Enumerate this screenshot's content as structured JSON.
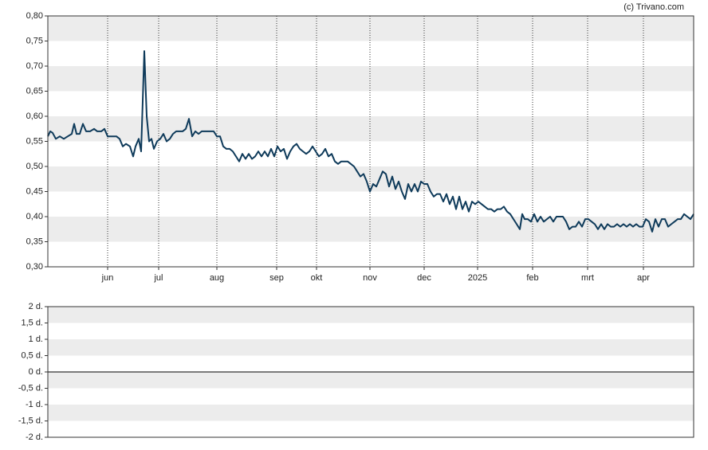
{
  "source": "(c) Trivano.com",
  "chart_data": [
    {
      "type": "line",
      "color": "#0e3a5a",
      "x": [
        0,
        3,
        6,
        10,
        15,
        20,
        25,
        30,
        33,
        36,
        40,
        44,
        48,
        53,
        58,
        62,
        67,
        71,
        75,
        80,
        86,
        90,
        94,
        98,
        103,
        107,
        110,
        114,
        117,
        121,
        124,
        127,
        130,
        133,
        137,
        141,
        145,
        149,
        153,
        157,
        161,
        165,
        169,
        173,
        177,
        181,
        185,
        189,
        193,
        197,
        202,
        208,
        212,
        216,
        220,
        224,
        228,
        232,
        236,
        240,
        244,
        248,
        252,
        256,
        260,
        264,
        268,
        272,
        276,
        280,
        284,
        288,
        292,
        296,
        300,
        304,
        308,
        312,
        316,
        320,
        324,
        328,
        332,
        336,
        340,
        344,
        348,
        352,
        356,
        360,
        364,
        368,
        372,
        376,
        380,
        384,
        388,
        392,
        396,
        400,
        404,
        408,
        412,
        416,
        420,
        424,
        428,
        432,
        436,
        440,
        444,
        448,
        452,
        456,
        460,
        464,
        468,
        472,
        476,
        480,
        484,
        488,
        492,
        496,
        500,
        504,
        508,
        512,
        516,
        520,
        524,
        528,
        532,
        536,
        540,
        544,
        548,
        552,
        556,
        560,
        564,
        568,
        572,
        576,
        580,
        584,
        588,
        592,
        595,
        598,
        602,
        606,
        610,
        614,
        618,
        622,
        626,
        630,
        634,
        638,
        642,
        646,
        650,
        654,
        658,
        662,
        666,
        670,
        674,
        678,
        682,
        686,
        690,
        694,
        698,
        702,
        706,
        710,
        714,
        718,
        722,
        726,
        730,
        734,
        738,
        742,
        746,
        750,
        754,
        758,
        762,
        766,
        770,
        774,
        778,
        782,
        786,
        790,
        794,
        798,
        802,
        806,
        810
      ],
      "values": [
        0.56,
        0.57,
        0.567,
        0.555,
        0.56,
        0.555,
        0.56,
        0.565,
        0.585,
        0.565,
        0.565,
        0.585,
        0.57,
        0.57,
        0.575,
        0.57,
        0.57,
        0.575,
        0.56,
        0.56,
        0.56,
        0.555,
        0.54,
        0.545,
        0.54,
        0.52,
        0.54,
        0.555,
        0.53,
        0.73,
        0.6,
        0.55,
        0.555,
        0.535,
        0.55,
        0.555,
        0.565,
        0.55,
        0.555,
        0.565,
        0.57,
        0.57,
        0.57,
        0.575,
        0.595,
        0.56,
        0.57,
        0.565,
        0.57,
        0.57,
        0.57,
        0.57,
        0.56,
        0.56,
        0.54,
        0.535,
        0.535,
        0.53,
        0.52,
        0.51,
        0.525,
        0.515,
        0.525,
        0.515,
        0.52,
        0.53,
        0.52,
        0.53,
        0.52,
        0.535,
        0.52,
        0.54,
        0.53,
        0.535,
        0.515,
        0.53,
        0.54,
        0.545,
        0.535,
        0.53,
        0.525,
        0.53,
        0.54,
        0.53,
        0.52,
        0.525,
        0.535,
        0.52,
        0.525,
        0.51,
        0.505,
        0.51,
        0.51,
        0.51,
        0.505,
        0.5,
        0.49,
        0.48,
        0.485,
        0.47,
        0.45,
        0.465,
        0.46,
        0.475,
        0.49,
        0.485,
        0.46,
        0.48,
        0.455,
        0.47,
        0.45,
        0.435,
        0.465,
        0.45,
        0.465,
        0.45,
        0.47,
        0.465,
        0.465,
        0.45,
        0.44,
        0.445,
        0.445,
        0.43,
        0.445,
        0.425,
        0.44,
        0.415,
        0.44,
        0.415,
        0.43,
        0.41,
        0.43,
        0.425,
        0.43,
        0.425,
        0.42,
        0.415,
        0.415,
        0.41,
        0.415,
        0.415,
        0.42,
        0.41,
        0.405,
        0.395,
        0.385,
        0.375,
        0.405,
        0.395,
        0.395,
        0.39,
        0.405,
        0.39,
        0.4,
        0.39,
        0.395,
        0.4,
        0.39,
        0.4,
        0.4,
        0.4,
        0.39,
        0.375,
        0.38,
        0.38,
        0.39,
        0.38,
        0.395,
        0.395,
        0.39,
        0.385,
        0.375,
        0.385,
        0.375,
        0.385,
        0.38,
        0.38,
        0.385,
        0.38,
        0.385,
        0.38,
        0.385,
        0.38,
        0.385,
        0.38,
        0.38,
        0.395,
        0.39,
        0.37,
        0.395,
        0.38,
        0.395,
        0.395,
        0.38,
        0.385,
        0.39,
        0.395,
        0.395,
        0.405,
        0.4,
        0.395,
        0.405
      ],
      "xlim": [
        0,
        810
      ],
      "xticks": [
        {
          "value": 75,
          "label": "jun"
        },
        {
          "value": 139,
          "label": "jul"
        },
        {
          "value": 212,
          "label": "aug"
        },
        {
          "value": 287,
          "label": "sep"
        },
        {
          "value": 337,
          "label": "okt"
        },
        {
          "value": 404,
          "label": "nov"
        },
        {
          "value": 472,
          "label": "dec"
        },
        {
          "value": 539,
          "label": "2025"
        },
        {
          "value": 608,
          "label": "feb"
        },
        {
          "value": 677,
          "label": "mrt"
        },
        {
          "value": 747,
          "label": "apr"
        }
      ],
      "ylim": [
        0.3,
        0.8
      ],
      "yticks": [
        {
          "value": 0.3,
          "label": "0,30"
        },
        {
          "value": 0.35,
          "label": "0,35"
        },
        {
          "value": 0.4,
          "label": "0,40"
        },
        {
          "value": 0.45,
          "label": "0,45"
        },
        {
          "value": 0.5,
          "label": "0,50"
        },
        {
          "value": 0.55,
          "label": "0,55"
        },
        {
          "value": 0.6,
          "label": "0,60"
        },
        {
          "value": 0.65,
          "label": "0,65"
        },
        {
          "value": 0.7,
          "label": "0,70"
        },
        {
          "value": 0.75,
          "label": "0,75"
        },
        {
          "value": 0.8,
          "label": "0,80"
        }
      ],
      "grid": true
    },
    {
      "type": "bar",
      "ylim": [
        -2,
        2
      ],
      "yticks": [
        {
          "value": -2,
          "label": "-2 d."
        },
        {
          "value": -1.5,
          "label": "-1,5 d."
        },
        {
          "value": -1,
          "label": "-1 d."
        },
        {
          "value": -0.5,
          "label": "-0,5 d."
        },
        {
          "value": 0,
          "label": "0 d."
        },
        {
          "value": 0.5,
          "label": "0,5 d."
        },
        {
          "value": 1,
          "label": "1 d."
        },
        {
          "value": 1.5,
          "label": "1,5 d."
        },
        {
          "value": 2,
          "label": "2 d."
        }
      ]
    }
  ]
}
